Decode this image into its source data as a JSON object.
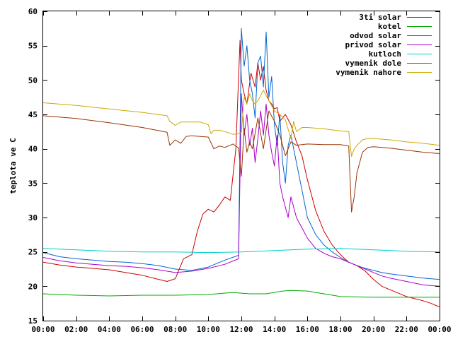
{
  "chart_data": {
    "type": "line",
    "title": "",
    "xlabel": "",
    "ylabel": "teplota ve C",
    "xlim": [
      "00:00",
      "24:00"
    ],
    "ylim": [
      15,
      60
    ],
    "grid": false,
    "legend_placement": "top-right",
    "x_ticks": [
      "00:00",
      "02:00",
      "04:00",
      "06:00",
      "08:00",
      "10:00",
      "12:00",
      "14:00",
      "16:00",
      "18:00",
      "20:00",
      "22:00",
      "00:00"
    ],
    "y_ticks": [
      15,
      20,
      25,
      30,
      35,
      40,
      45,
      50,
      55,
      60
    ],
    "series": [
      {
        "name": "3ti solar",
        "color": "#cc0000",
        "x": [
          "00:00",
          "01:00",
          "02:00",
          "03:00",
          "04:00",
          "05:00",
          "06:00",
          "07:00",
          "07:30",
          "08:00",
          "08:30",
          "09:00",
          "09:20",
          "09:40",
          "10:00",
          "10:20",
          "10:40",
          "11:00",
          "11:20",
          "11:40",
          "11:55",
          "12:00",
          "12:10",
          "12:20",
          "12:35",
          "12:50",
          "13:00",
          "13:10",
          "13:20",
          "13:30",
          "13:40",
          "13:50",
          "14:00",
          "14:10",
          "14:20",
          "14:40",
          "15:00",
          "15:20",
          "15:40",
          "16:00",
          "16:30",
          "17:00",
          "17:30",
          "18:00",
          "18:30",
          "19:00",
          "19:30",
          "20:00",
          "20:30",
          "21:00",
          "21:30",
          "22:00",
          "22:30",
          "23:00",
          "23:30",
          "23:59"
        ],
        "values": [
          23.5,
          23.1,
          22.8,
          22.6,
          22.4,
          22.0,
          21.6,
          21.0,
          20.7,
          21.1,
          24.0,
          24.6,
          28.0,
          30.5,
          31.2,
          30.8,
          31.8,
          33.0,
          32.5,
          40.0,
          55.8,
          50.0,
          48.0,
          46.5,
          51.0,
          49.0,
          52.5,
          50.0,
          52.0,
          48.5,
          47.0,
          46.5,
          45.8,
          46.0,
          44.0,
          45.0,
          43.5,
          41.0,
          39.0,
          35.5,
          31.0,
          28.0,
          26.0,
          24.6,
          23.5,
          23.0,
          22.2,
          21.0,
          20.0,
          19.5,
          19.0,
          18.5,
          18.2,
          17.9,
          17.5,
          17.0
        ]
      },
      {
        "name": "kotel",
        "color": "#00aa00",
        "x": [
          "00:00",
          "02:00",
          "04:00",
          "06:00",
          "08:00",
          "10:00",
          "11:30",
          "12:00",
          "12:30",
          "13:30",
          "14:30",
          "15:00",
          "16:00",
          "17:00",
          "18:00",
          "20:00",
          "22:00",
          "23:59"
        ],
        "values": [
          18.9,
          18.7,
          18.6,
          18.7,
          18.7,
          18.8,
          19.1,
          19.0,
          18.9,
          18.9,
          19.3,
          19.4,
          19.3,
          18.9,
          18.5,
          18.4,
          18.4,
          18.4
        ]
      },
      {
        "name": "odvod solar",
        "color": "#0066cc",
        "x": [
          "00:00",
          "01:00",
          "02:00",
          "03:00",
          "04:00",
          "05:00",
          "06:00",
          "07:00",
          "08:00",
          "09:00",
          "10:00",
          "11:00",
          "11:50",
          "12:00",
          "12:10",
          "12:20",
          "12:30",
          "12:40",
          "12:50",
          "13:00",
          "13:10",
          "13:20",
          "13:30",
          "13:40",
          "13:50",
          "14:00",
          "14:10",
          "14:20",
          "14:30",
          "14:40",
          "14:50",
          "15:00",
          "15:20",
          "15:40",
          "16:00",
          "16:30",
          "17:00",
          "17:30",
          "18:00",
          "18:30",
          "19:00",
          "19:30",
          "20:00",
          "20:30",
          "21:00",
          "22:00",
          "23:00",
          "23:59"
        ],
        "values": [
          24.9,
          24.3,
          24.0,
          23.8,
          23.6,
          23.5,
          23.3,
          23.0,
          22.5,
          22.3,
          22.8,
          23.8,
          24.5,
          57.5,
          52.0,
          55.0,
          50.0,
          48.0,
          44.5,
          52.5,
          53.5,
          49.0,
          57.0,
          47.5,
          50.5,
          43.5,
          40.5,
          45.0,
          38.0,
          35.0,
          40.5,
          42.0,
          38.0,
          34.0,
          30.0,
          27.5,
          26.0,
          25.0,
          24.2,
          23.5,
          23.0,
          22.6,
          22.3,
          22.0,
          21.8,
          21.5,
          21.2,
          21.0
        ]
      },
      {
        "name": "privod solar",
        "color": "#aa00cc",
        "x": [
          "00:00",
          "01:00",
          "02:00",
          "03:00",
          "04:00",
          "05:00",
          "06:00",
          "07:00",
          "08:00",
          "09:00",
          "10:00",
          "11:00",
          "11:50",
          "12:00",
          "12:10",
          "12:20",
          "12:30",
          "12:40",
          "12:50",
          "13:00",
          "13:10",
          "13:20",
          "13:30",
          "13:40",
          "13:50",
          "14:00",
          "14:10",
          "14:20",
          "14:30",
          "14:40",
          "14:50",
          "15:00",
          "15:20",
          "15:40",
          "16:00",
          "16:30",
          "17:00",
          "17:30",
          "18:00",
          "18:30",
          "19:00",
          "19:30",
          "20:00",
          "20:30",
          "21:00",
          "22:00",
          "23:00",
          "23:59"
        ],
        "values": [
          24.2,
          23.7,
          23.4,
          23.2,
          23.0,
          22.9,
          22.7,
          22.4,
          22.0,
          22.2,
          22.6,
          23.2,
          24.0,
          48.0,
          42.0,
          45.0,
          40.5,
          43.0,
          38.0,
          41.5,
          45.5,
          42.0,
          46.5,
          42.0,
          39.5,
          37.5,
          42.0,
          35.0,
          33.0,
          31.5,
          30.0,
          33.0,
          30.0,
          28.5,
          27.0,
          25.5,
          24.8,
          24.3,
          24.0,
          23.5,
          23.0,
          22.5,
          22.0,
          21.5,
          21.2,
          20.7,
          20.2,
          20.0
        ]
      },
      {
        "name": "kutloch",
        "color": "#00cccc",
        "x": [
          "00:00",
          "02:00",
          "04:00",
          "06:00",
          "08:00",
          "10:00",
          "12:00",
          "14:00",
          "16:00",
          "18:00",
          "20:00",
          "22:00",
          "23:59"
        ],
        "values": [
          25.5,
          25.3,
          25.1,
          25.0,
          25.0,
          24.9,
          25.0,
          25.2,
          25.4,
          25.5,
          25.3,
          25.1,
          25.0
        ]
      },
      {
        "name": "vymenik dole",
        "color": "#993300",
        "x": [
          "00:00",
          "02:00",
          "04:00",
          "06:00",
          "07:30",
          "07:40",
          "08:00",
          "08:20",
          "08:40",
          "09:00",
          "10:00",
          "10:20",
          "10:40",
          "11:00",
          "11:30",
          "11:50",
          "12:00",
          "12:10",
          "12:20",
          "12:30",
          "12:40",
          "13:00",
          "13:20",
          "13:40",
          "14:00",
          "14:20",
          "14:40",
          "15:00",
          "15:20",
          "15:40",
          "16:00",
          "17:00",
          "18:00",
          "18:30",
          "18:40",
          "18:50",
          "19:00",
          "19:20",
          "19:40",
          "20:00",
          "21:00",
          "22:00",
          "23:00",
          "23:59"
        ],
        "values": [
          44.8,
          44.4,
          43.8,
          43.1,
          42.4,
          40.5,
          41.3,
          40.8,
          41.8,
          41.9,
          41.7,
          40.0,
          40.4,
          40.2,
          40.7,
          40.1,
          36.0,
          43.0,
          39.5,
          41.0,
          40.0,
          44.5,
          40.0,
          45.5,
          44.0,
          42.0,
          39.0,
          41.0,
          40.5,
          40.6,
          40.7,
          40.6,
          40.6,
          40.4,
          30.8,
          33.0,
          36.5,
          39.5,
          40.2,
          40.3,
          40.1,
          39.8,
          39.5,
          39.3
        ]
      },
      {
        "name": "vymenik nahore",
        "color": "#ccaa00",
        "x": [
          "00:00",
          "02:00",
          "04:00",
          "06:00",
          "07:30",
          "07:40",
          "08:00",
          "08:20",
          "08:40",
          "09:30",
          "10:00",
          "10:10",
          "10:20",
          "10:40",
          "11:00",
          "11:30",
          "11:50",
          "12:00",
          "12:10",
          "12:20",
          "12:30",
          "12:40",
          "12:50",
          "13:00",
          "13:20",
          "13:40",
          "14:00",
          "14:20",
          "14:40",
          "15:00",
          "15:10",
          "15:20",
          "15:40",
          "16:00",
          "17:00",
          "18:00",
          "18:30",
          "18:40",
          "18:50",
          "19:00",
          "19:20",
          "19:40",
          "20:00",
          "21:00",
          "22:00",
          "23:00",
          "23:59"
        ],
        "values": [
          46.7,
          46.3,
          45.8,
          45.3,
          44.8,
          44.0,
          43.4,
          43.9,
          43.9,
          43.9,
          43.5,
          42.2,
          42.7,
          42.7,
          42.5,
          42.1,
          42.2,
          42.4,
          47.5,
          46.5,
          48.0,
          47.0,
          46.5,
          47.0,
          48.5,
          47.0,
          45.5,
          45.0,
          44.2,
          41.5,
          44.0,
          42.5,
          43.1,
          43.1,
          42.9,
          42.6,
          42.5,
          38.9,
          40.0,
          40.5,
          41.3,
          41.5,
          41.5,
          41.3,
          41.0,
          40.8,
          40.5
        ]
      }
    ]
  }
}
